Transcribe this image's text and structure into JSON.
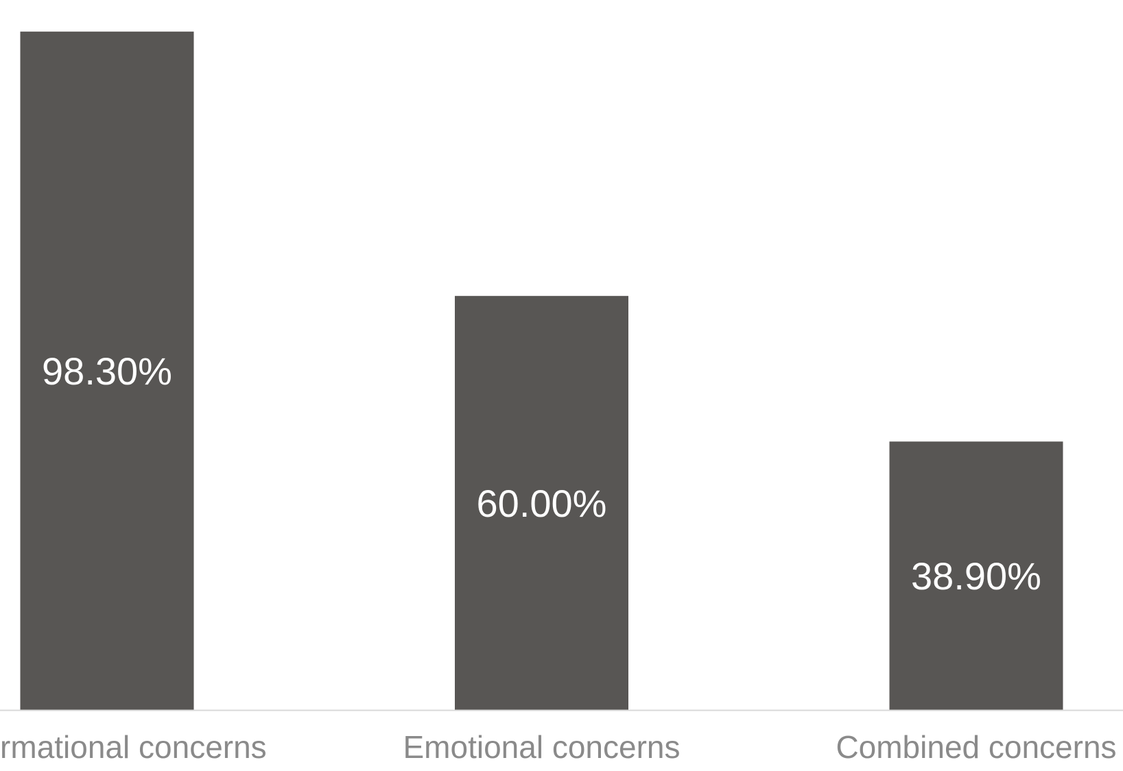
{
  "chart_data": {
    "type": "bar",
    "categories": [
      "Informational concerns",
      "Emotional concerns",
      "Combined concerns"
    ],
    "values": [
      98.3,
      60.0,
      38.9
    ],
    "value_labels": [
      "98.30%",
      "60.00%",
      "38.90%"
    ],
    "title": "",
    "xlabel": "",
    "ylabel": "",
    "ylim": [
      0,
      100
    ],
    "grid": false,
    "legend": "none",
    "colors": {
      "bar": "#585654",
      "data_label": "#ffffff",
      "tick_label": "#8a8a8a",
      "axis_line": "#d9d9d9"
    }
  }
}
